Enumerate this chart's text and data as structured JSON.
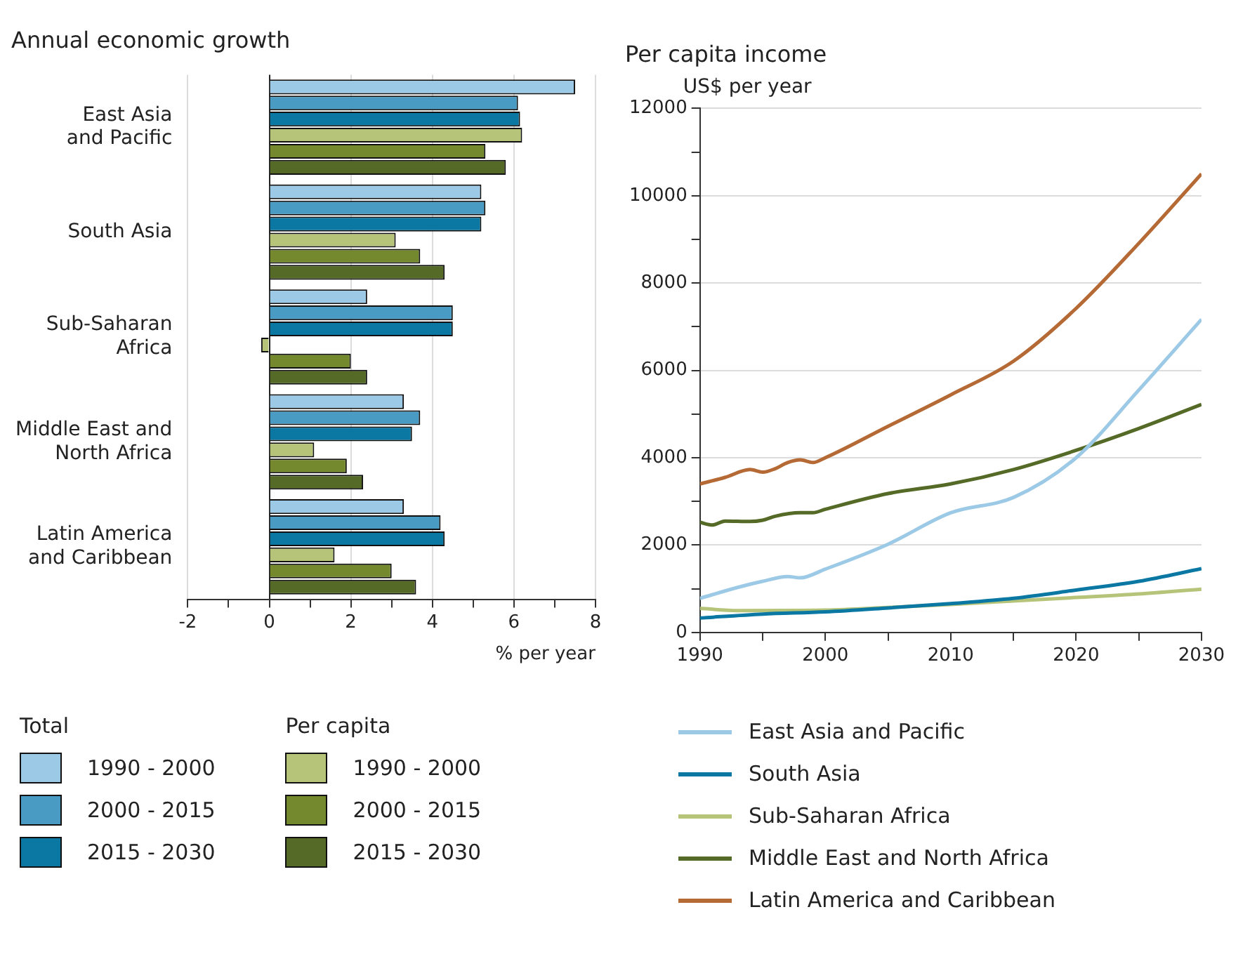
{
  "chart_data": [
    {
      "type": "bar",
      "orientation": "horizontal",
      "title": "Annual economic growth",
      "xlabel": "% per year",
      "categories": [
        "East Asia and Pacific",
        "South Asia",
        "Sub-Saharan Africa",
        "Middle East and North Africa",
        "Latin America and Caribbean"
      ],
      "series": [
        {
          "name": "1990 - 2000",
          "color": "#9ccae6",
          "values": [
            7.5,
            5.2,
            2.4,
            3.3,
            3.3
          ]
        },
        {
          "name": "2000 - 2015",
          "color": "#4a9bc4",
          "values": [
            6.1,
            5.3,
            4.5,
            3.7,
            4.2
          ]
        },
        {
          "name": "2015 - 2030",
          "color": "#0a78a3",
          "values": [
            6.15,
            5.2,
            4.5,
            3.5,
            4.3
          ]
        },
        {
          "name": "1990 - 2000",
          "color": "#b6c47a",
          "values": [
            6.2,
            3.1,
            -0.2,
            1.1,
            1.6
          ]
        },
        {
          "name": "2000 - 2015",
          "color": "#74892e",
          "values": [
            5.3,
            3.7,
            2.0,
            1.9,
            3.0
          ]
        },
        {
          "name": "2015 - 2030",
          "color": "#546a26",
          "values": [
            5.8,
            4.3,
            2.4,
            2.3,
            3.6
          ]
        }
      ],
      "xlim": [
        -2,
        8
      ],
      "xticks": [
        -2,
        {
          "value": -1,
          "label": null
        },
        0,
        {
          "value": 1,
          "label": null
        },
        2,
        {
          "value": 3,
          "label": null
        },
        4,
        {
          "value": 5,
          "label": null
        },
        6,
        {
          "value": 7,
          "label": null
        },
        8
      ],
      "grid": "x",
      "legend": "bottom",
      "annotations": [
        "Total",
        "Per capita"
      ]
    },
    {
      "type": "line",
      "title": "Per capita income",
      "ylabel": "US$ per year",
      "series": [
        {
          "name": "East Asia and Pacific",
          "color": "#9ccae6",
          "x": [
            1990,
            1993,
            1995,
            1997,
            1998,
            2000,
            2005,
            2010,
            2015,
            2020,
            2025,
            2030
          ],
          "values": [
            780,
            1030,
            1170,
            1280,
            1250,
            1450,
            2020,
            2740,
            3090,
            4000,
            5550,
            7170
          ]
        },
        {
          "name": "South Asia",
          "color": "#0a78a3",
          "x": [
            1990,
            1995,
            2000,
            2005,
            2010,
            2015,
            2020,
            2025,
            2030
          ],
          "values": [
            330,
            420,
            470,
            560,
            660,
            780,
            970,
            1170,
            1460
          ]
        },
        {
          "name": "Sub-Saharan Africa",
          "color": "#b6c47a",
          "x": [
            1990,
            1993,
            2000,
            2005,
            2010,
            2015,
            2020,
            2025,
            2030
          ],
          "values": [
            550,
            500,
            510,
            570,
            640,
            720,
            800,
            880,
            990
          ]
        },
        {
          "name": "Middle East and North Africa",
          "color": "#546a26",
          "x": [
            1990,
            1991,
            1992,
            1994,
            1995,
            1996,
            1998,
            1999,
            2000,
            2005,
            2010,
            2015,
            2020,
            2025,
            2030
          ],
          "values": [
            2520,
            2460,
            2550,
            2540,
            2570,
            2660,
            2740,
            2740,
            2820,
            3180,
            3400,
            3730,
            4170,
            4670,
            5220
          ]
        },
        {
          "name": "Latin America and Caribbean",
          "color": "#b56a36",
          "x": [
            1990,
            1992,
            1994,
            1995,
            1996,
            1997,
            1998,
            1999,
            2000,
            2005,
            2010,
            2015,
            2020,
            2025,
            2030
          ],
          "values": [
            3400,
            3550,
            3730,
            3670,
            3750,
            3890,
            3950,
            3890,
            4000,
            4720,
            5440,
            6210,
            7420,
            8910,
            10500
          ]
        }
      ],
      "xlim": [
        1990,
        2030
      ],
      "xticks": [
        1990,
        {
          "value": 1995,
          "label": null
        },
        2000,
        {
          "value": 2005,
          "label": null
        },
        2010,
        {
          "value": 2015,
          "label": null
        },
        2020,
        {
          "value": 2025,
          "label": null
        },
        2030
      ],
      "ylim": [
        0,
        12000
      ],
      "yticks": [
        0,
        {
          "value": 1000,
          "label": null
        },
        2000,
        {
          "value": 3000,
          "label": null
        },
        4000,
        {
          "value": 5000,
          "label": null
        },
        6000,
        {
          "value": 7000,
          "label": null
        },
        8000,
        {
          "value": 9000,
          "label": null
        },
        10000,
        {
          "value": 11000,
          "label": null
        },
        12000
      ],
      "grid": "y",
      "legend": "bottom",
      "marker": "none",
      "line_style": "solid"
    }
  ]
}
